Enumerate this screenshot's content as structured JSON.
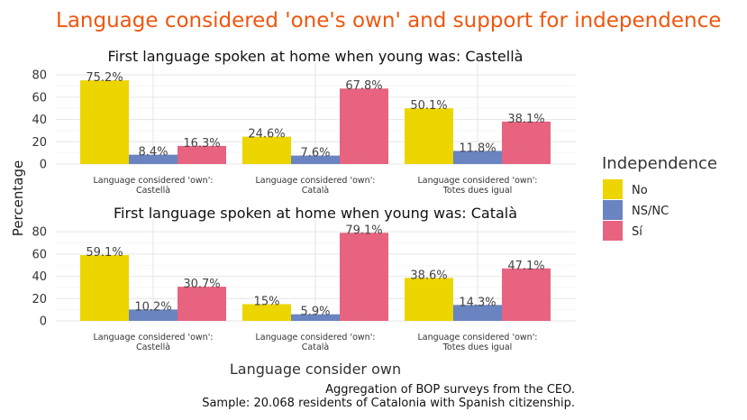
{
  "colors": {
    "No": "#EDD500",
    "NS/NC": "#6984C0",
    "Sí": "#E8637F",
    "title": "#F0560E"
  },
  "main_title": "Language considered 'one's own' and support for independence",
  "y_axis_label": "Percentage",
  "x_axis_label": "Language consider own",
  "legend": {
    "title": "Independence",
    "items": [
      {
        "key": "No",
        "label": "No"
      },
      {
        "key": "NS/NC",
        "label": "NS/NC"
      },
      {
        "key": "Sí",
        "label": "Sí"
      }
    ]
  },
  "caption": {
    "line1": "Aggregation of BOP surveys from the CEO.",
    "line2": "Sample: 20.068 residents of Catalonia with Spanish citizenship."
  },
  "chart_data": {
    "type": "bar",
    "ylim": [
      0,
      85
    ],
    "yticks": [
      0,
      20,
      40,
      60,
      80
    ],
    "grid": true,
    "legend_position": "right",
    "categories": [
      {
        "line1": "Language considered 'own':",
        "line2": "Castellà"
      },
      {
        "line1": "Language considered 'own':",
        "line2": "Català"
      },
      {
        "line1": "Language considered 'own':",
        "line2": "Totes dues igual"
      }
    ],
    "panels": [
      {
        "title": "First language spoken at home when young was: Castellà",
        "series": [
          {
            "name": "No",
            "values": [
              75.2,
              24.6,
              50.1
            ],
            "labels": [
              "75.2%",
              "24.6%",
              "50.1%"
            ]
          },
          {
            "name": "NS/NC",
            "values": [
              8.4,
              7.6,
              11.8
            ],
            "labels": [
              "8.4%",
              "7.6%",
              "11.8%"
            ]
          },
          {
            "name": "Sí",
            "values": [
              16.3,
              67.8,
              38.1
            ],
            "labels": [
              "16.3%",
              "67.8%",
              "38.1%"
            ]
          }
        ]
      },
      {
        "title": "First language spoken at home when young was: Català",
        "series": [
          {
            "name": "No",
            "values": [
              59.1,
              15,
              38.6
            ],
            "labels": [
              "59.1%",
              "15%",
              "38.6%"
            ]
          },
          {
            "name": "NS/NC",
            "values": [
              10.2,
              5.9,
              14.3
            ],
            "labels": [
              "10.2%",
              "5.9%",
              "14.3%"
            ]
          },
          {
            "name": "Sí",
            "values": [
              30.7,
              79.1,
              47.1
            ],
            "labels": [
              "30.7%",
              "79.1%",
              "47.1%"
            ]
          }
        ]
      }
    ]
  }
}
